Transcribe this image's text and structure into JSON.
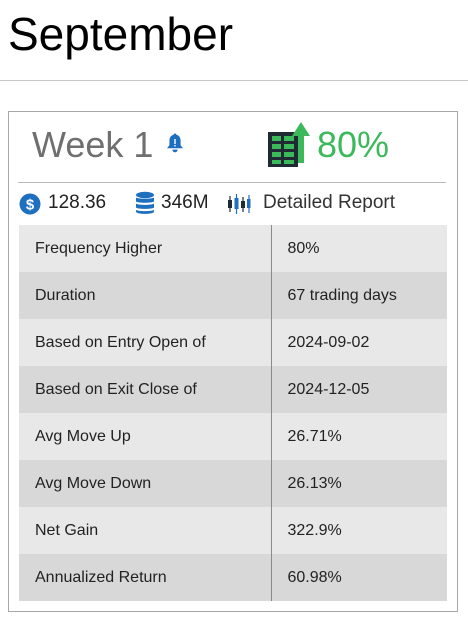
{
  "header": {
    "title": "September"
  },
  "card": {
    "week_label": "Week 1",
    "frequency_higher": "80%",
    "price": "128.36",
    "volume": "346M",
    "report_link": "Detailed Report",
    "icons": {
      "bell": "bell-icon",
      "report_up": "report-up-icon",
      "dollar": "dollar-icon",
      "database": "database-icon",
      "candlestick": "candlestick-icon"
    },
    "colors": {
      "up_green": "#3cb95b",
      "icon_blue": "#1f6fc1",
      "week_gray": "#6f6f6f"
    }
  },
  "table": {
    "rows": [
      {
        "label": "Frequency Higher",
        "value": "80%"
      },
      {
        "label": "Duration",
        "value": "67 trading days"
      },
      {
        "label": "Based on Entry Open of",
        "value": "2024-09-02"
      },
      {
        "label": "Based on Exit Close of",
        "value": "2024-12-05"
      },
      {
        "label": "Avg Move Up",
        "value": "26.71%"
      },
      {
        "label": "Avg Move Down",
        "value": "26.13%"
      },
      {
        "label": "Net Gain",
        "value": "322.9%"
      },
      {
        "label": "Annualized Return",
        "value": "60.98%"
      }
    ]
  }
}
